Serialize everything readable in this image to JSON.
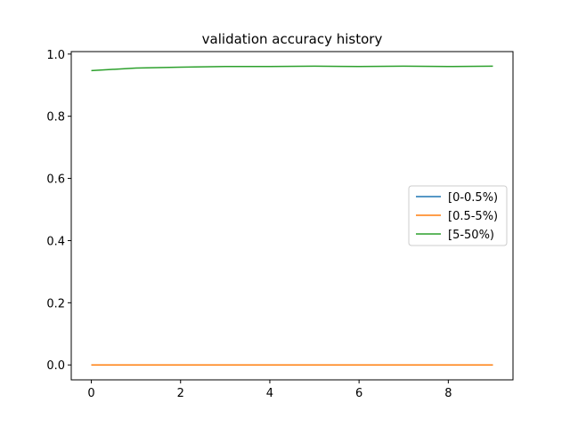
{
  "chart_data": {
    "type": "line",
    "title": "validation accuracy history",
    "xlabel": "",
    "ylabel": "",
    "x": [
      0,
      1,
      2,
      3,
      4,
      5,
      6,
      7,
      8,
      9
    ],
    "xlim": [
      -0.45,
      9.45
    ],
    "ylim": [
      -0.048,
      1.008
    ],
    "xticks": [
      0,
      2,
      4,
      6,
      8
    ],
    "yticks": [
      0.0,
      0.2,
      0.4,
      0.6,
      0.8,
      1.0
    ],
    "xtick_labels": [
      "0",
      "2",
      "4",
      "6",
      "8"
    ],
    "ytick_labels": [
      "0.0",
      "0.2",
      "0.4",
      "0.6",
      "0.8",
      "1.0"
    ],
    "grid": false,
    "legend_position": "center-right",
    "series": [
      {
        "name": "[0-0.5%)",
        "color": "#1f77b4",
        "values": [
          0,
          0,
          0,
          0,
          0,
          0,
          0,
          0,
          0,
          0
        ]
      },
      {
        "name": "[0.5-5%)",
        "color": "#ff7f0e",
        "values": [
          0,
          0,
          0,
          0,
          0,
          0,
          0,
          0,
          0,
          0
        ]
      },
      {
        "name": "[5-50%)",
        "color": "#2ca02c",
        "values": [
          0.947,
          0.955,
          0.958,
          0.96,
          0.96,
          0.961,
          0.96,
          0.961,
          0.96,
          0.961
        ]
      }
    ]
  }
}
